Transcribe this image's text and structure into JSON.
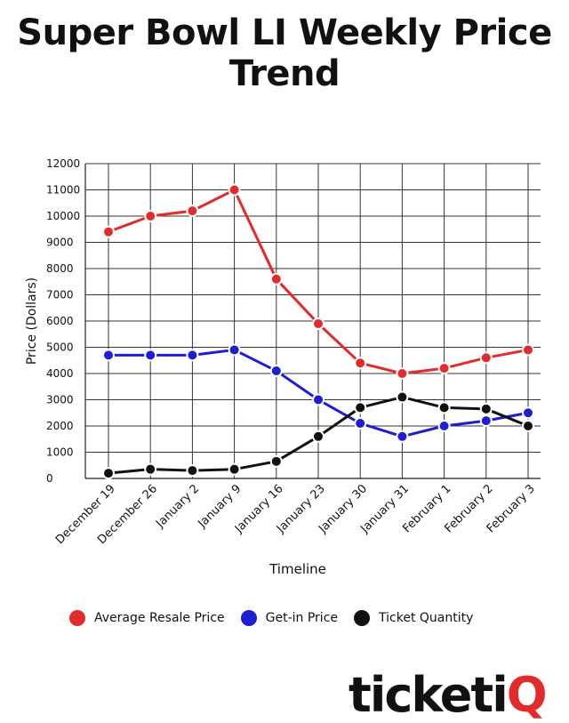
{
  "title_line1": "Super Bowl LI Weekly Price",
  "title_line2": "Trend",
  "chart_data": {
    "type": "line",
    "title": "Super Bowl LI Weekly Price Trend",
    "xlabel": "Timeline",
    "ylabel": "Price (Dollars)",
    "ylim": [
      0,
      12000
    ],
    "yticks": [
      0,
      1000,
      2000,
      3000,
      4000,
      5000,
      6000,
      7000,
      8000,
      9000,
      10000,
      11000,
      12000
    ],
    "grid": true,
    "legend_position": "bottom",
    "categories": [
      "December 19",
      "December 26",
      "January 2",
      "January 9",
      "January 16",
      "January 23",
      "January 30",
      "January 31",
      "February 1",
      "February 2",
      "February 3"
    ],
    "series": [
      {
        "name": "Average Resale Price",
        "color": "#e32b2b",
        "values": [
          9400,
          10000,
          10200,
          11000,
          7600,
          5900,
          4400,
          4000,
          4200,
          4600,
          4900
        ]
      },
      {
        "name": "Get-in Price",
        "color": "#1e1ed2",
        "values": [
          4700,
          4700,
          4700,
          4900,
          4100,
          3000,
          2100,
          1600,
          2000,
          2200,
          2500
        ]
      },
      {
        "name": "Ticket Quantity",
        "color": "#111111",
        "values": [
          200,
          350,
          300,
          350,
          650,
          1600,
          2700,
          3100,
          2700,
          2650,
          2000
        ]
      }
    ]
  },
  "legend": {
    "items": [
      {
        "label": "Average Resale Price",
        "color": "#e32b2b"
      },
      {
        "label": "Get-in Price",
        "color": "#1e1ed2"
      },
      {
        "label": "Ticket Quantity",
        "color": "#111111"
      }
    ]
  },
  "logo": {
    "text": "ticketi",
    "q": "Q"
  }
}
